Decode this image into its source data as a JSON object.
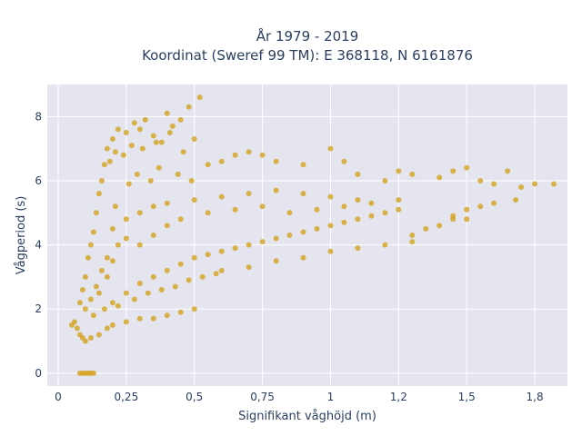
{
  "chart_data": {
    "type": "scatter",
    "title_line1": "År 1979 - 2019",
    "title_line2": "Koordinat (Sweref 99 TM): E 368118, N 6161876",
    "xlabel": "Signifikant våghöjd (m)",
    "ylabel": "Vågperiod (s)",
    "xlim": [
      -0.04,
      1.87
    ],
    "ylim": [
      -0.4,
      9.0
    ],
    "xticks": [
      {
        "value": 0,
        "label": "0"
      },
      {
        "value": 0.25,
        "label": "0,25"
      },
      {
        "value": 0.5,
        "label": "0,5"
      },
      {
        "value": 0.75,
        "label": "0,75"
      },
      {
        "value": 1.0,
        "label": "1"
      },
      {
        "value": 1.25,
        "label": "1,2"
      },
      {
        "value": 1.5,
        "label": "1,5"
      },
      {
        "value": 1.75,
        "label": "1,8"
      }
    ],
    "yticks": [
      {
        "value": 0,
        "label": "0"
      },
      {
        "value": 2,
        "label": "2"
      },
      {
        "value": 4,
        "label": "4"
      },
      {
        "value": 6,
        "label": "6"
      },
      {
        "value": 8,
        "label": "8"
      }
    ],
    "grid": true,
    "colors": {
      "marker": "#d4a31e",
      "plot_bg": "#e5e5ef",
      "grid": "#ffffff",
      "text": "#2a3f5f"
    },
    "series": [
      {
        "points": [
          [
            0.08,
            0.0
          ],
          [
            0.09,
            0.0
          ],
          [
            0.1,
            0.0
          ],
          [
            0.11,
            0.0
          ],
          [
            0.12,
            0.0
          ],
          [
            0.13,
            0.0
          ],
          [
            0.05,
            1.5
          ],
          [
            0.06,
            1.6
          ],
          [
            0.07,
            1.4
          ],
          [
            0.08,
            1.2
          ],
          [
            0.09,
            1.1
          ],
          [
            0.1,
            1.0
          ],
          [
            0.12,
            1.1
          ],
          [
            0.15,
            1.2
          ],
          [
            0.18,
            1.4
          ],
          [
            0.2,
            1.5
          ],
          [
            0.25,
            1.6
          ],
          [
            0.3,
            1.7
          ],
          [
            0.35,
            1.7
          ],
          [
            0.4,
            1.8
          ],
          [
            0.45,
            1.9
          ],
          [
            0.5,
            2.0
          ],
          [
            0.08,
            2.2
          ],
          [
            0.09,
            2.6
          ],
          [
            0.1,
            3.0
          ],
          [
            0.11,
            3.6
          ],
          [
            0.12,
            4.0
          ],
          [
            0.13,
            4.4
          ],
          [
            0.14,
            5.0
          ],
          [
            0.15,
            5.6
          ],
          [
            0.16,
            6.0
          ],
          [
            0.17,
            6.5
          ],
          [
            0.18,
            7.0
          ],
          [
            0.2,
            7.3
          ],
          [
            0.22,
            7.6
          ],
          [
            0.25,
            7.5
          ],
          [
            0.28,
            7.8
          ],
          [
            0.3,
            7.6
          ],
          [
            0.32,
            7.9
          ],
          [
            0.35,
            7.4
          ],
          [
            0.38,
            7.2
          ],
          [
            0.4,
            8.1
          ],
          [
            0.42,
            7.7
          ],
          [
            0.45,
            7.9
          ],
          [
            0.48,
            8.3
          ],
          [
            0.52,
            8.6
          ],
          [
            0.5,
            7.3
          ],
          [
            0.55,
            6.5
          ],
          [
            0.6,
            6.6
          ],
          [
            0.65,
            6.8
          ],
          [
            0.7,
            6.9
          ],
          [
            0.75,
            6.8
          ],
          [
            0.8,
            6.6
          ],
          [
            0.9,
            6.5
          ],
          [
            1.0,
            7.0
          ],
          [
            1.05,
            6.6
          ],
          [
            1.1,
            6.2
          ],
          [
            1.2,
            6.0
          ],
          [
            1.25,
            6.3
          ],
          [
            1.3,
            6.2
          ],
          [
            1.4,
            6.1
          ],
          [
            1.45,
            6.3
          ],
          [
            1.5,
            6.4
          ],
          [
            1.55,
            6.0
          ],
          [
            1.6,
            5.9
          ],
          [
            1.65,
            6.3
          ],
          [
            1.7,
            5.8
          ],
          [
            1.75,
            5.9
          ],
          [
            1.82,
            5.9
          ],
          [
            1.3,
            4.3
          ],
          [
            1.35,
            4.5
          ],
          [
            1.4,
            4.6
          ],
          [
            1.45,
            4.9
          ],
          [
            1.5,
            5.1
          ],
          [
            1.55,
            5.2
          ],
          [
            1.6,
            5.3
          ],
          [
            1.68,
            5.4
          ],
          [
            1.5,
            4.8
          ],
          [
            1.45,
            4.8
          ],
          [
            0.2,
            2.2
          ],
          [
            0.25,
            2.5
          ],
          [
            0.3,
            2.8
          ],
          [
            0.35,
            3.0
          ],
          [
            0.4,
            3.2
          ],
          [
            0.45,
            3.4
          ],
          [
            0.5,
            3.6
          ],
          [
            0.55,
            3.7
          ],
          [
            0.6,
            3.8
          ],
          [
            0.65,
            3.9
          ],
          [
            0.7,
            4.0
          ],
          [
            0.75,
            4.1
          ],
          [
            0.8,
            4.2
          ],
          [
            0.85,
            4.3
          ],
          [
            0.9,
            4.4
          ],
          [
            0.95,
            4.5
          ],
          [
            1.0,
            4.6
          ],
          [
            1.05,
            4.7
          ],
          [
            1.1,
            4.8
          ],
          [
            1.15,
            4.9
          ],
          [
            1.2,
            5.0
          ],
          [
            1.25,
            5.1
          ],
          [
            0.2,
            4.5
          ],
          [
            0.25,
            4.8
          ],
          [
            0.3,
            5.0
          ],
          [
            0.35,
            5.2
          ],
          [
            0.4,
            5.3
          ],
          [
            0.5,
            5.4
          ],
          [
            0.6,
            5.5
          ],
          [
            0.7,
            5.6
          ],
          [
            0.8,
            5.7
          ],
          [
            0.9,
            5.6
          ],
          [
            1.0,
            5.5
          ],
          [
            1.1,
            5.4
          ],
          [
            0.15,
            2.5
          ],
          [
            0.18,
            3.0
          ],
          [
            0.2,
            3.5
          ],
          [
            0.22,
            4.0
          ],
          [
            0.25,
            4.2
          ],
          [
            0.3,
            4.0
          ],
          [
            0.35,
            4.3
          ],
          [
            0.4,
            4.6
          ],
          [
            0.45,
            4.8
          ],
          [
            0.55,
            5.0
          ],
          [
            0.65,
            5.1
          ],
          [
            0.75,
            5.2
          ],
          [
            0.85,
            5.0
          ],
          [
            0.95,
            5.1
          ],
          [
            1.05,
            5.2
          ],
          [
            1.15,
            5.3
          ],
          [
            1.25,
            5.4
          ],
          [
            0.6,
            3.2
          ],
          [
            0.7,
            3.3
          ],
          [
            0.8,
            3.5
          ],
          [
            0.9,
            3.6
          ],
          [
            1.0,
            3.8
          ],
          [
            1.1,
            3.9
          ],
          [
            1.2,
            4.0
          ],
          [
            1.3,
            4.1
          ],
          [
            0.1,
            2.0
          ],
          [
            0.12,
            2.3
          ],
          [
            0.14,
            2.7
          ],
          [
            0.16,
            3.2
          ],
          [
            0.18,
            3.6
          ],
          [
            0.13,
            1.8
          ],
          [
            0.17,
            2.0
          ],
          [
            0.22,
            2.1
          ],
          [
            0.28,
            2.3
          ],
          [
            0.33,
            2.5
          ],
          [
            0.38,
            2.6
          ],
          [
            0.43,
            2.7
          ],
          [
            0.48,
            2.9
          ],
          [
            0.53,
            3.0
          ],
          [
            0.58,
            3.1
          ],
          [
            0.19,
            6.6
          ],
          [
            0.21,
            6.9
          ],
          [
            0.24,
            6.8
          ],
          [
            0.27,
            7.1
          ],
          [
            0.31,
            7.0
          ],
          [
            0.36,
            7.2
          ],
          [
            0.41,
            7.5
          ],
          [
            0.46,
            6.9
          ],
          [
            0.21,
            5.2
          ],
          [
            0.26,
            5.9
          ],
          [
            0.29,
            6.2
          ],
          [
            0.34,
            6.0
          ],
          [
            0.37,
            6.4
          ],
          [
            0.44,
            6.2
          ],
          [
            0.49,
            6.0
          ]
        ]
      }
    ]
  }
}
